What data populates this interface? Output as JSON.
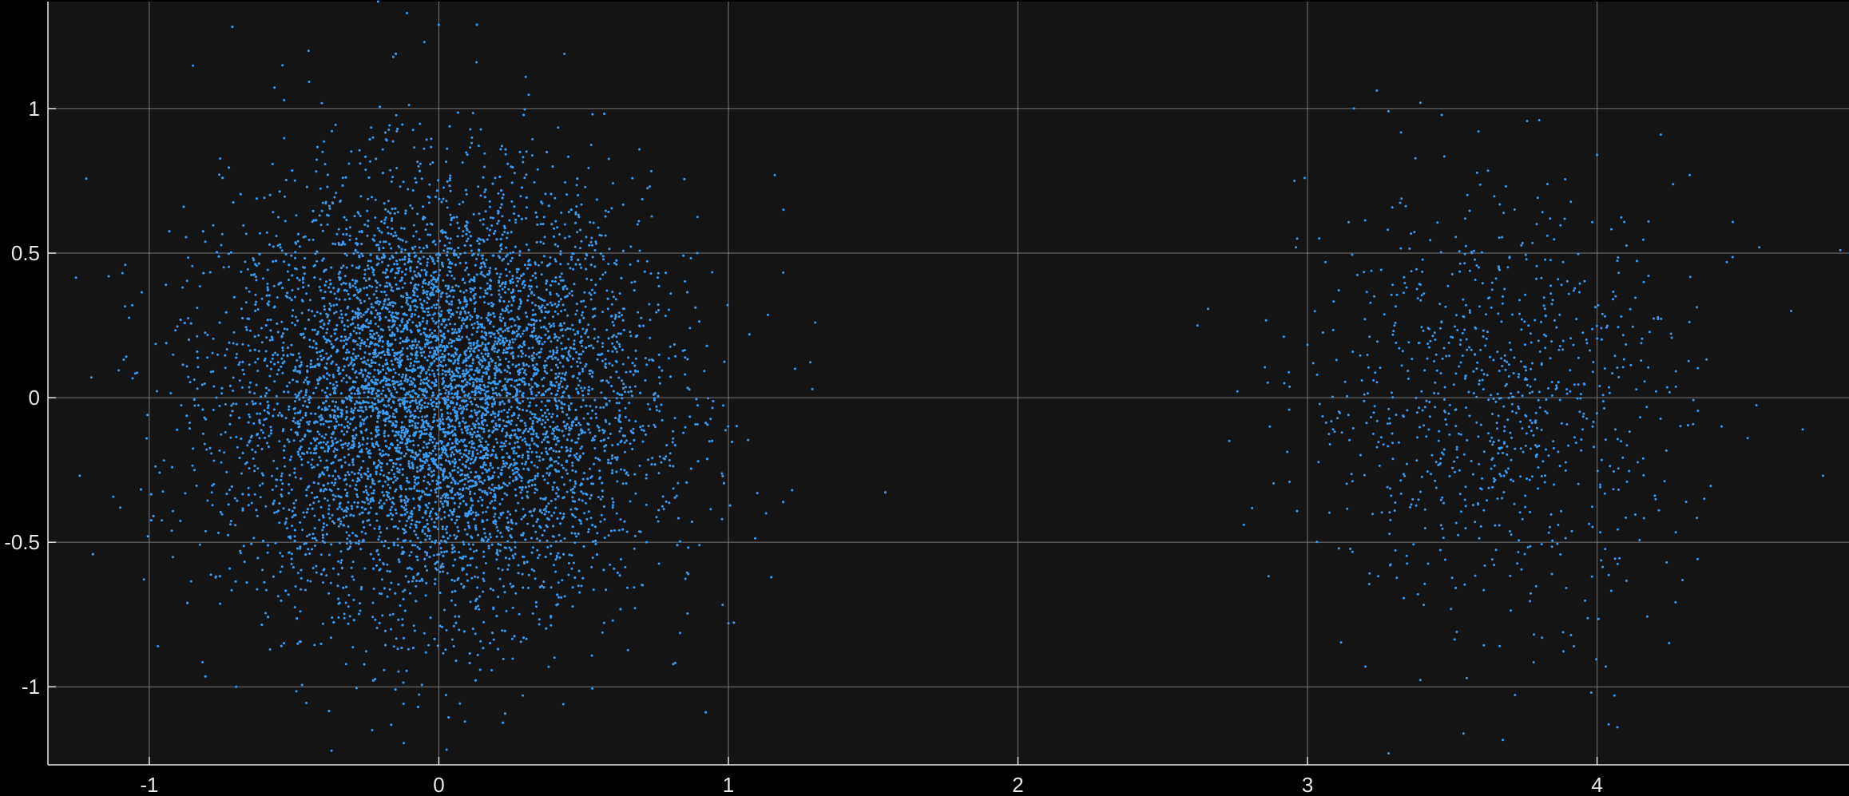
{
  "chart_data": {
    "type": "scatter",
    "title": "",
    "xlabel": "",
    "ylabel": "",
    "xlim": [
      -1.35,
      4.87
    ],
    "ylim": [
      -1.27,
      1.37
    ],
    "xticks": [
      -1,
      0,
      1,
      2,
      3,
      4
    ],
    "yticks": [
      -1,
      -0.5,
      0,
      0.5,
      1
    ],
    "xtick_labels": [
      "-1",
      "0",
      "1",
      "2",
      "3",
      "4"
    ],
    "ytick_labels": [
      "-1",
      "-0.5",
      "0",
      "0.5",
      "1"
    ],
    "grid": true,
    "colors": {
      "background": "#000000",
      "plot_background": "#141414",
      "grid": "#9a9a9a",
      "axis": "#e6e6e6",
      "marker": "#3a9bf0"
    },
    "series": [
      {
        "clusters": [
          {
            "center": [
              0.0,
              0.0
            ],
            "std": [
              0.36,
              0.36
            ],
            "count": 9000
          },
          {
            "center": [
              3.65,
              0.0
            ],
            "std": [
              0.33,
              0.35
            ],
            "count": 900
          }
        ],
        "points": [
          [
            -0.21,
            1.37
          ],
          [
            -0.11,
            1.33
          ],
          [
            0.0,
            1.29
          ],
          [
            -0.45,
            1.2
          ],
          [
            -0.54,
            1.15
          ],
          [
            0.13,
            1.16
          ],
          [
            0.3,
            1.11
          ],
          [
            1.16,
            0.77
          ],
          [
            1.19,
            0.65
          ],
          [
            1.3,
            0.26
          ],
          [
            1.23,
            0.1
          ],
          [
            1.1,
            -0.33
          ],
          [
            1.13,
            -0.4
          ],
          [
            1.22,
            -0.32
          ],
          [
            0.9,
            -0.51
          ],
          [
            1.0,
            -0.78
          ],
          [
            -1.14,
            0.42
          ],
          [
            -1.2,
            0.07
          ],
          [
            -1.24,
            -0.27
          ],
          [
            -1.1,
            -0.38
          ],
          [
            -0.97,
            -0.86
          ],
          [
            -0.7,
            -1.0
          ],
          [
            -0.23,
            -1.15
          ],
          [
            0.09,
            -1.12
          ],
          [
            0.43,
            -1.06
          ],
          [
            0.29,
            -1.03
          ],
          [
            -0.05,
            1.23
          ],
          [
            3.39,
            1.02
          ],
          [
            3.8,
            0.96
          ],
          [
            4.0,
            0.84
          ],
          [
            4.22,
            0.91
          ],
          [
            4.32,
            0.77
          ],
          [
            4.56,
            0.52
          ],
          [
            4.67,
            0.3
          ],
          [
            4.84,
            0.51
          ],
          [
            4.71,
            -0.11
          ],
          [
            4.78,
            -0.27
          ],
          [
            4.52,
            -0.14
          ],
          [
            2.62,
            0.25
          ],
          [
            2.73,
            -0.15
          ],
          [
            2.87,
            -0.1
          ],
          [
            2.78,
            -0.44
          ],
          [
            2.92,
            0.05
          ],
          [
            2.99,
            0.76
          ],
          [
            2.96,
            0.52
          ],
          [
            3.2,
            -0.93
          ],
          [
            3.28,
            -1.23
          ],
          [
            3.55,
            -0.97
          ],
          [
            3.98,
            -1.02
          ],
          [
            4.04,
            -1.13
          ],
          [
            4.07,
            -1.14
          ],
          [
            4.06,
            -1.03
          ],
          [
            3.92,
            -0.86
          ],
          [
            3.81,
            -0.83
          ],
          [
            4.03,
            -0.93
          ]
        ]
      }
    ]
  }
}
